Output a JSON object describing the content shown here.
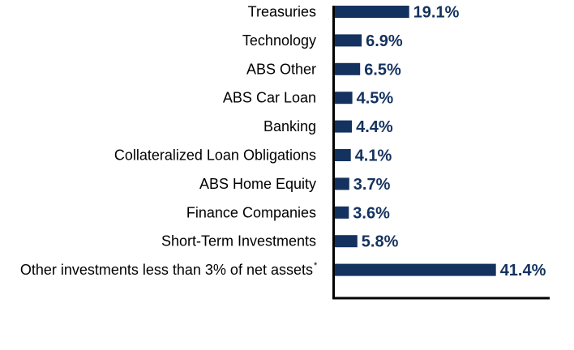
{
  "chart_data": {
    "type": "bar",
    "orientation": "horizontal",
    "title": "",
    "xlabel": "",
    "ylabel": "",
    "categories": [
      "Treasuries",
      "Technology",
      "ABS Other",
      "ABS Car Loan",
      "Banking",
      "Collateralized Loan Obligations",
      "ABS Home Equity",
      "Finance Companies",
      "Short-Term Investments",
      "Other investments less than 3% of net assets"
    ],
    "values": [
      19.1,
      6.9,
      6.5,
      4.5,
      4.4,
      4.1,
      3.7,
      3.6,
      5.8,
      41.4
    ],
    "value_labels": [
      "19.1%",
      "6.9%",
      "6.5%",
      "4.5%",
      "4.4%",
      "4.1%",
      "3.7%",
      "3.6%",
      "5.8%",
      "41.4%"
    ],
    "footnote_marker": "*",
    "footnote_index": 9,
    "xlim": [
      0,
      55
    ],
    "grid": false,
    "bar_color": "#14325f",
    "label_color": "#14325f"
  }
}
